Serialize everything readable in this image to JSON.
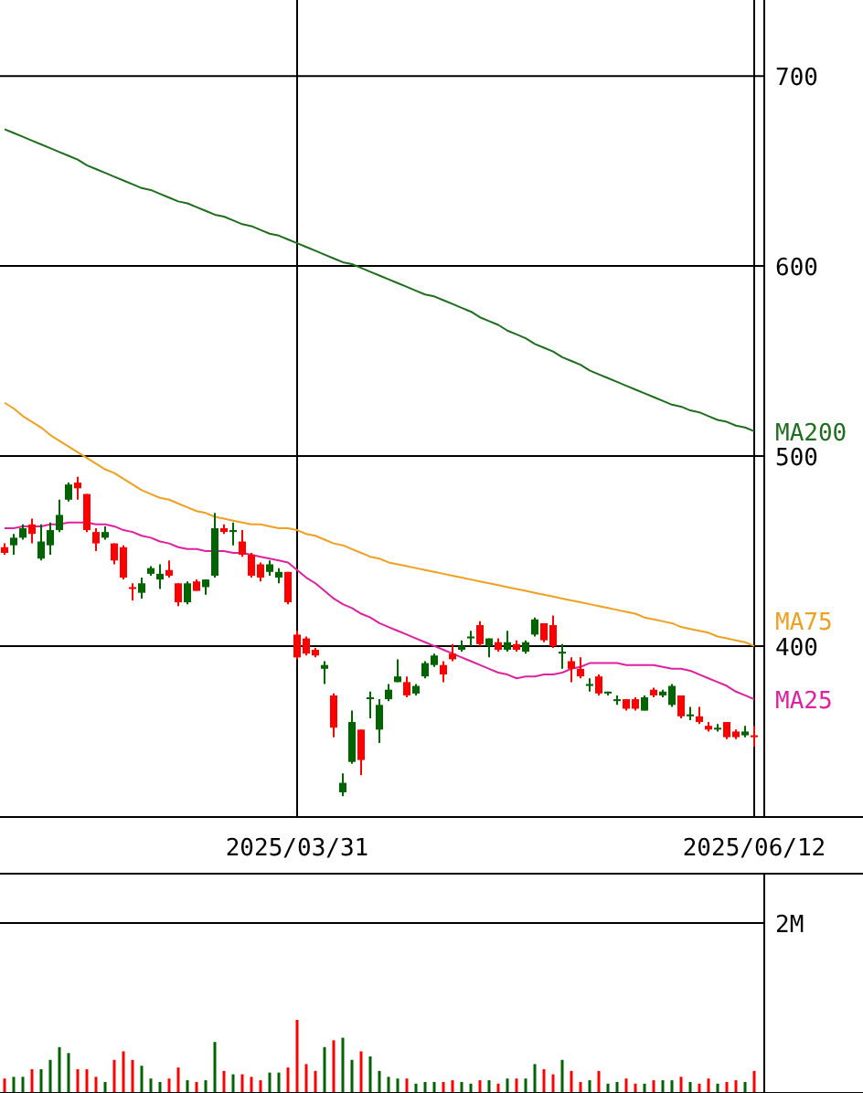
{
  "chart_data": [
    {
      "type": "candlestick",
      "categories": [
        null,
        null,
        null,
        null,
        null,
        null,
        null,
        null,
        null,
        null,
        null,
        null,
        null,
        null,
        null,
        null,
        null,
        null,
        null,
        null,
        null,
        null,
        null,
        null,
        null,
        null,
        null,
        null,
        null,
        null,
        null,
        null,
        "2025/03/31",
        null,
        null,
        null,
        null,
        null,
        null,
        null,
        null,
        null,
        null,
        null,
        null,
        null,
        null,
        null,
        null,
        null,
        null,
        null,
        null,
        null,
        null,
        null,
        null,
        null,
        null,
        null,
        null,
        null,
        null,
        null,
        null,
        null,
        null,
        null,
        null,
        null,
        null,
        null,
        null,
        null,
        null,
        null,
        null,
        null,
        null,
        null,
        null,
        null,
        "2025/06/12"
      ],
      "ohlc": [
        [
          452,
          454,
          448,
          449
        ],
        [
          453,
          459,
          448,
          457
        ],
        [
          457,
          464,
          456,
          462
        ],
        [
          464,
          467,
          454,
          459
        ],
        [
          446,
          464,
          445,
          455
        ],
        [
          453,
          465,
          448,
          461
        ],
        [
          461,
          477,
          460,
          469
        ],
        [
          477,
          486,
          476,
          485
        ],
        [
          486,
          489,
          477,
          483
        ],
        [
          480,
          480,
          460,
          461
        ],
        [
          460,
          462,
          450,
          454
        ],
        [
          457,
          463,
          456,
          460
        ],
        [
          454,
          454,
          443,
          445
        ],
        [
          452,
          453,
          435,
          436
        ],
        [
          431,
          433,
          424,
          430
        ],
        [
          428,
          436,
          425,
          433
        ],
        [
          438,
          442,
          437,
          441
        ],
        [
          435,
          443,
          430,
          438
        ],
        [
          440,
          445,
          436,
          437
        ],
        [
          433,
          433,
          421,
          423
        ],
        [
          423,
          434,
          422,
          433
        ],
        [
          434,
          435,
          429,
          429
        ],
        [
          431,
          435,
          427,
          435
        ],
        [
          437,
          470,
          436,
          462
        ],
        [
          462,
          464,
          459,
          460
        ],
        [
          460,
          465,
          453,
          461
        ],
        [
          455,
          461,
          447,
          448
        ],
        [
          448,
          449,
          436,
          437
        ],
        [
          443,
          444,
          434,
          436
        ],
        [
          439,
          445,
          437,
          443
        ],
        [
          436,
          441,
          433,
          439
        ],
        [
          439,
          439,
          422,
          423
        ],
        [
          406,
          408,
          393,
          394
        ],
        [
          404,
          405,
          395,
          396
        ],
        [
          398,
          399,
          394,
          395
        ],
        [
          388,
          392,
          380,
          390
        ],
        [
          374,
          375,
          352,
          357
        ],
        [
          323,
          333,
          321,
          328
        ],
        [
          339,
          366,
          338,
          360
        ],
        [
          356,
          356,
          332,
          340
        ],
        [
          372,
          376,
          362,
          373
        ],
        [
          356,
          372,
          349,
          369
        ],
        [
          372,
          380,
          371,
          377
        ],
        [
          381,
          393,
          381,
          384
        ],
        [
          381,
          384,
          373,
          374
        ],
        [
          375,
          380,
          374,
          379
        ],
        [
          384,
          392,
          383,
          391
        ],
        [
          390,
          396,
          389,
          395
        ],
        [
          390,
          392,
          381,
          385
        ],
        [
          396,
          401,
          392,
          393
        ],
        [
          398,
          403,
          397,
          400
        ],
        [
          404,
          408,
          400,
          405
        ],
        [
          411,
          413,
          400,
          401
        ],
        [
          400,
          404,
          394,
          404
        ],
        [
          402,
          404,
          397,
          398
        ],
        [
          398,
          408,
          397,
          402
        ],
        [
          401,
          403,
          397,
          398
        ],
        [
          397,
          403,
          396,
          402
        ],
        [
          406,
          415,
          405,
          414
        ],
        [
          412,
          412,
          402,
          403
        ],
        [
          411,
          416,
          399,
          400
        ],
        [
          396,
          401,
          388,
          397
        ],
        [
          392,
          394,
          381,
          388
        ],
        [
          388,
          394,
          383,
          384
        ],
        [
          379,
          383,
          376,
          380
        ],
        [
          384,
          385,
          374,
          375
        ],
        [
          375,
          376,
          374,
          376
        ],
        [
          371,
          374,
          369,
          372
        ],
        [
          372,
          372,
          366,
          367
        ],
        [
          372,
          373,
          366,
          367
        ],
        [
          366,
          374,
          366,
          373
        ],
        [
          377,
          378,
          373,
          374
        ],
        [
          374,
          377,
          373,
          376
        ],
        [
          369,
          380,
          368,
          379
        ],
        [
          374,
          374,
          362,
          363
        ],
        [
          363,
          368,
          361,
          364
        ],
        [
          363,
          368,
          359,
          360
        ],
        [
          358,
          360,
          355,
          356
        ],
        [
          356,
          359,
          355,
          357
        ],
        [
          360,
          360,
          351,
          352
        ],
        [
          355,
          356,
          351,
          352
        ],
        [
          353,
          358,
          352,
          355
        ],
        [
          353,
          358,
          347,
          352
        ]
      ],
      "colors": [
        "#ff0000",
        "#006400",
        "#006400",
        "#ff0000",
        "#006400",
        "#006400",
        "#006400",
        "#006400",
        "#ff0000",
        "#ff0000",
        "#ff0000",
        "#006400",
        "#ff0000",
        "#ff0000",
        "#ff0000",
        "#006400",
        "#006400",
        "#006400",
        "#ff0000",
        "#ff0000",
        "#006400",
        "#ff0000",
        "#006400",
        "#006400",
        "#ff0000",
        "#006400",
        "#ff0000",
        "#ff0000",
        "#ff0000",
        "#006400",
        "#006400",
        "#ff0000",
        "#ff0000",
        "#ff0000",
        "#ff0000",
        "#006400",
        "#ff0000",
        "#006400",
        "#006400",
        "#ff0000",
        "#006400",
        "#006400",
        "#006400",
        "#006400",
        "#ff0000",
        "#006400",
        "#006400",
        "#006400",
        "#ff0000",
        "#ff0000",
        "#006400",
        "#006400",
        "#ff0000",
        "#006400",
        "#ff0000",
        "#006400",
        "#ff0000",
        "#006400",
        "#006400",
        "#ff0000",
        "#ff0000",
        "#006400",
        "#ff0000",
        "#ff0000",
        "#006400",
        "#ff0000",
        "#006400",
        "#006400",
        "#ff0000",
        "#ff0000",
        "#006400",
        "#ff0000",
        "#006400",
        "#006400",
        "#ff0000",
        "#006400",
        "#ff0000",
        "#ff0000",
        "#006400",
        "#ff0000",
        "#ff0000",
        "#006400",
        "#ff0000"
      ],
      "series": [
        {
          "type": "line",
          "name": "MA200",
          "color": "#1e6e1e",
          "values": [
            672,
            670,
            668,
            666,
            664,
            662,
            660,
            658,
            656,
            653,
            651,
            649,
            647,
            645,
            643,
            641,
            640,
            638,
            636,
            634,
            633,
            631,
            629,
            627,
            626,
            624,
            622,
            621,
            619,
            617,
            616,
            614,
            612,
            610,
            608,
            606,
            604,
            602,
            601,
            599,
            597,
            595,
            593,
            591,
            589,
            587,
            585,
            584,
            582,
            580,
            578,
            576,
            573,
            571,
            569,
            566,
            564,
            562,
            559,
            557,
            555,
            552,
            550,
            548,
            545,
            543,
            541,
            539,
            537,
            535,
            533,
            531,
            529,
            527,
            526,
            524,
            523,
            521,
            519,
            518,
            516,
            515,
            513
          ]
        },
        {
          "type": "line",
          "name": "MA75",
          "color": "#f0a020",
          "values": [
            528,
            525,
            521,
            518,
            515,
            511,
            508,
            505,
            502,
            499,
            496,
            493,
            491,
            488,
            485,
            482,
            480,
            478,
            477,
            475,
            473,
            471,
            470,
            468,
            467,
            466,
            465,
            464,
            464,
            463,
            462,
            462,
            461,
            459,
            458,
            456,
            454,
            453,
            451,
            449,
            447,
            446,
            444,
            443,
            442,
            441,
            440,
            439,
            438,
            437,
            436,
            435,
            434,
            433,
            432,
            431,
            430,
            429,
            428,
            427,
            426,
            425,
            424,
            423,
            422,
            421,
            420,
            419,
            418,
            417,
            415,
            414,
            413,
            412,
            410,
            409,
            408,
            407,
            405,
            404,
            403,
            402,
            400
          ]
        },
        {
          "type": "line",
          "name": "MA25",
          "color": "#e020a0",
          "values": [
            462,
            462,
            463,
            463,
            463,
            464,
            464,
            465,
            465,
            465,
            464,
            464,
            463,
            461,
            460,
            458,
            457,
            455,
            454,
            452,
            451,
            451,
            450,
            450,
            450,
            449,
            449,
            448,
            447,
            446,
            445,
            444,
            440,
            436,
            433,
            429,
            425,
            422,
            420,
            417,
            415,
            412,
            410,
            408,
            406,
            404,
            402,
            400,
            398,
            396,
            394,
            392,
            390,
            388,
            386,
            385,
            383,
            384,
            384,
            385,
            385,
            386,
            388,
            389,
            391,
            391,
            391,
            391,
            390,
            390,
            390,
            390,
            389,
            388,
            388,
            387,
            385,
            383,
            381,
            379,
            376,
            374,
            372
          ]
        }
      ],
      "ylim": [
        310,
        740
      ],
      "yticks": [
        400,
        500,
        600,
        700
      ],
      "grid": true
    },
    {
      "type": "bar",
      "categories": [
        null,
        null,
        null,
        null,
        null,
        null,
        null,
        null,
        null,
        null,
        null,
        null,
        null,
        null,
        null,
        null,
        null,
        null,
        null,
        null,
        null,
        null,
        null,
        null,
        null,
        null,
        null,
        null,
        null,
        null,
        null,
        null,
        null,
        null,
        null,
        null,
        null,
        null,
        null,
        null,
        null,
        null,
        null,
        null,
        null,
        null,
        null,
        null,
        null,
        null,
        null,
        null,
        null,
        null,
        null,
        null,
        null,
        null,
        null,
        null,
        null,
        null,
        null,
        null,
        null,
        null,
        null,
        null,
        null,
        null,
        null,
        null,
        null,
        null,
        null,
        null,
        null,
        null,
        null,
        null,
        null,
        null,
        null
      ],
      "values": [
        170000,
        190000,
        190000,
        280000,
        280000,
        390000,
        540000,
        470000,
        280000,
        280000,
        190000,
        130000,
        390000,
        490000,
        390000,
        320000,
        170000,
        130000,
        170000,
        300000,
        150000,
        130000,
        150000,
        600000,
        260000,
        220000,
        220000,
        190000,
        150000,
        240000,
        240000,
        300000,
        860000,
        340000,
        260000,
        540000,
        620000,
        650000,
        390000,
        490000,
        430000,
        260000,
        190000,
        170000,
        170000,
        110000,
        130000,
        130000,
        130000,
        150000,
        130000,
        110000,
        150000,
        150000,
        110000,
        170000,
        170000,
        170000,
        340000,
        280000,
        220000,
        390000,
        260000,
        130000,
        150000,
        260000,
        110000,
        130000,
        170000,
        110000,
        110000,
        150000,
        150000,
        150000,
        190000,
        130000,
        110000,
        170000,
        110000,
        130000,
        150000,
        130000,
        260000
      ],
      "colors": [
        "#ff0000",
        "#006400",
        "#006400",
        "#ff0000",
        "#006400",
        "#006400",
        "#006400",
        "#006400",
        "#ff0000",
        "#ff0000",
        "#ff0000",
        "#006400",
        "#ff0000",
        "#ff0000",
        "#ff0000",
        "#006400",
        "#006400",
        "#006400",
        "#ff0000",
        "#ff0000",
        "#006400",
        "#ff0000",
        "#006400",
        "#006400",
        "#ff0000",
        "#006400",
        "#ff0000",
        "#ff0000",
        "#ff0000",
        "#006400",
        "#006400",
        "#ff0000",
        "#ff0000",
        "#ff0000",
        "#ff0000",
        "#006400",
        "#ff0000",
        "#006400",
        "#006400",
        "#ff0000",
        "#006400",
        "#006400",
        "#006400",
        "#006400",
        "#ff0000",
        "#006400",
        "#006400",
        "#006400",
        "#ff0000",
        "#ff0000",
        "#006400",
        "#006400",
        "#ff0000",
        "#006400",
        "#ff0000",
        "#006400",
        "#ff0000",
        "#006400",
        "#006400",
        "#ff0000",
        "#ff0000",
        "#006400",
        "#ff0000",
        "#ff0000",
        "#006400",
        "#ff0000",
        "#006400",
        "#006400",
        "#ff0000",
        "#ff0000",
        "#006400",
        "#ff0000",
        "#006400",
        "#006400",
        "#ff0000",
        "#006400",
        "#ff0000",
        "#ff0000",
        "#006400",
        "#ff0000",
        "#ff0000",
        "#006400",
        "#ff0000"
      ],
      "ylim": [
        0,
        2580000
      ],
      "yticks": [
        {
          "value": 0,
          "label": null
        },
        {
          "value": 2000000,
          "label": "2M"
        }
      ],
      "grid": "y",
      "tick_labels": "y"
    }
  ]
}
